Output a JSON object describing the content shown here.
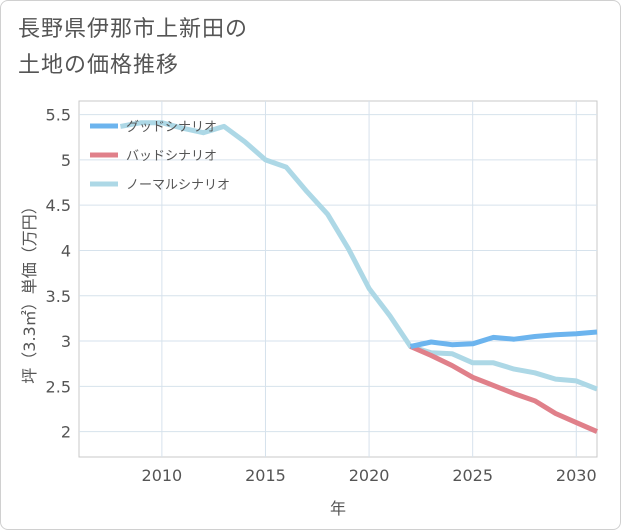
{
  "title": "長野県伊那市上新田の\n土地の価格推移",
  "chart_data": {
    "type": "line",
    "xlabel": "年",
    "ylabel": "坪（3.3㎡）単価（万円）",
    "xlim": [
      2006,
      2031
    ],
    "ylim": [
      1.72,
      5.65
    ],
    "xticks": [
      2010,
      2015,
      2020,
      2025,
      2030
    ],
    "yticks": [
      2,
      2.5,
      3,
      3.5,
      4,
      4.5,
      5,
      5.5
    ],
    "ytick_labels": [
      "2",
      "2.5",
      "3",
      "3.5",
      "4",
      "4.5",
      "5",
      "5.5"
    ],
    "grid": true,
    "legend_position": "top-left",
    "series": [
      {
        "name": "グッドシナリオ",
        "color": "#6cb4ee",
        "x": [
          2022,
          2023,
          2024,
          2025,
          2026,
          2027,
          2028,
          2029,
          2030,
          2031
        ],
        "y": [
          2.94,
          2.99,
          2.96,
          2.97,
          3.04,
          3.02,
          3.05,
          3.07,
          3.08,
          3.1
        ]
      },
      {
        "name": "バッドシナリオ",
        "color": "#e0808a",
        "x": [
          2022,
          2023,
          2024,
          2025,
          2026,
          2027,
          2028,
          2029,
          2030,
          2031
        ],
        "y": [
          2.94,
          2.84,
          2.73,
          2.6,
          2.51,
          2.42,
          2.34,
          2.2,
          2.1,
          2.0
        ]
      },
      {
        "name": "ノーマルシナリオ",
        "color": "#add8e6",
        "x": [
          2008,
          2009,
          2010,
          2011,
          2012,
          2013,
          2014,
          2015,
          2016,
          2017,
          2018,
          2019,
          2020,
          2021,
          2022,
          2023,
          2024,
          2025,
          2026,
          2027,
          2028,
          2029,
          2030,
          2031
        ],
        "y": [
          5.37,
          5.41,
          5.41,
          5.35,
          5.3,
          5.37,
          5.2,
          5.0,
          4.92,
          4.65,
          4.4,
          4.02,
          3.58,
          3.28,
          2.94,
          2.87,
          2.86,
          2.76,
          2.76,
          2.69,
          2.65,
          2.58,
          2.56,
          2.47
        ]
      }
    ]
  }
}
